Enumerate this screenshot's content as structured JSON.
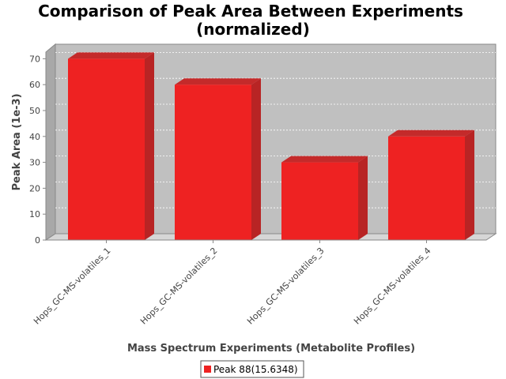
{
  "chart_data": {
    "type": "bar",
    "title": "Comparison of Peak Area Between Experiments",
    "subtitle": "(normalized)",
    "xlabel": "Mass Spectrum Experiments (Metabolite Profiles)",
    "ylabel": "Peak Area (1e-3)",
    "categories": [
      "Hops_GC-MS-volatiles_1",
      "Hops_GC-MS-volatiles_2",
      "Hops_GC-MS-volatiles_3",
      "Hops_GC-MS-volatiles_4"
    ],
    "series": [
      {
        "name": "Peak 88(15.6348)",
        "values": [
          70,
          60,
          30,
          40
        ],
        "color": "#ee2222"
      }
    ],
    "yticks": [
      0,
      10,
      20,
      30,
      40,
      50,
      60,
      70
    ],
    "ylim": [
      0,
      72
    ],
    "grid": true,
    "legend": "bottom-center",
    "style": "3d"
  }
}
